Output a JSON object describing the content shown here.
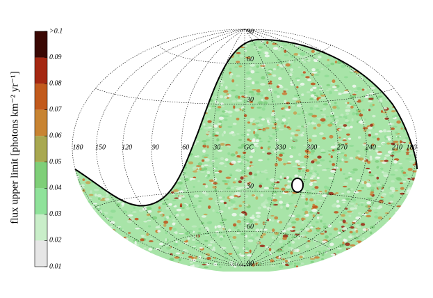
{
  "chart_data": {
    "type": "skymap",
    "projection": "hammer-aitoff",
    "colorbar": {
      "label": "flux upper limit [photons km⁻² yr⁻¹]",
      "lim": [
        0.01,
        0.1
      ],
      "ticks": [
        0.01,
        0.02,
        0.03,
        0.04,
        0.05,
        0.06,
        0.07,
        0.08,
        0.09,
        {
          "value": 0.1,
          "label": ">0.1"
        }
      ],
      "colors": [
        "#e6e6e6",
        "#c9eec9",
        "#8fe29a",
        "#7fcf78",
        "#a8a850",
        "#c88432",
        "#c25a1c",
        "#a52812",
        "#3a0804"
      ]
    },
    "lon_ticks": [
      180,
      150,
      120,
      90,
      60,
      30,
      {
        "value": 0,
        "label": "GC"
      },
      330,
      300,
      270,
      240,
      210,
      {
        "value": -180,
        "label": "180"
      }
    ],
    "lat_ticks": [
      90,
      60,
      30,
      {
        "value": -30,
        "label": "30"
      },
      {
        "value": -60,
        "label": "60"
      },
      {
        "value": -90,
        "label": "90"
      }
    ],
    "grid": true
  }
}
